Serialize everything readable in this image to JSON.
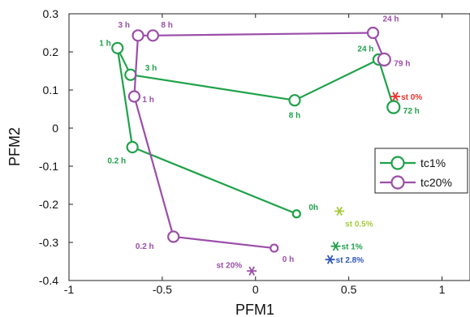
{
  "chart_data": {
    "type": "scatter",
    "xlabel": "PFM1",
    "ylabel": "PFM2",
    "xlim": [
      -1,
      1.15
    ],
    "ylim": [
      -0.4,
      0.3
    ],
    "x_ticks": [
      -1,
      -0.5,
      0,
      0.5,
      1
    ],
    "x_tick_labels": [
      "-1",
      "-0.5",
      "0",
      "0.5",
      "1"
    ],
    "y_ticks": [
      -0.4,
      -0.3,
      -0.2,
      -0.1,
      0,
      0.1,
      0.2,
      0.3
    ],
    "y_tick_labels": [
      "-0.4",
      "-0.3",
      "-0.2",
      "-0.1",
      "0",
      "0.1",
      "0.2",
      "0.3"
    ],
    "grid": false,
    "legend_position": "right",
    "series": [
      {
        "name": "tc1%",
        "color": "#1fa24a",
        "marker": "circle-line",
        "points": [
          {
            "label": "0h",
            "x": 0.22,
            "y": -0.225
          },
          {
            "label": "0.2 h",
            "x": -0.66,
            "y": -0.05
          },
          {
            "label": "1 h",
            "x": -0.74,
            "y": 0.21
          },
          {
            "label": "3 h",
            "x": -0.67,
            "y": 0.14
          },
          {
            "label": "8 h",
            "x": 0.21,
            "y": 0.073
          },
          {
            "label": "24 h",
            "x": 0.66,
            "y": 0.18
          },
          {
            "label": "72 h",
            "x": 0.74,
            "y": 0.055
          }
        ]
      },
      {
        "name": "tc20%",
        "color": "#9b4ea8",
        "marker": "circle-line",
        "points": [
          {
            "label": "0 h",
            "x": 0.1,
            "y": -0.315
          },
          {
            "label": "0.2 h",
            "x": -0.44,
            "y": -0.285
          },
          {
            "label": "1 h",
            "x": -0.65,
            "y": 0.083
          },
          {
            "label": "3 h",
            "x": -0.63,
            "y": 0.243
          },
          {
            "label": "8 h",
            "x": -0.55,
            "y": 0.243
          },
          {
            "label": "24 h",
            "x": 0.63,
            "y": 0.25
          },
          {
            "label": "79 h",
            "x": 0.69,
            "y": 0.18
          }
        ]
      }
    ],
    "standards": [
      {
        "label": "st 0%",
        "x": 0.75,
        "y": 0.083,
        "color": "#e8322c"
      },
      {
        "label": "st 0.5%",
        "x": 0.45,
        "y": -0.218,
        "color": "#a6c93b"
      },
      {
        "label": "st 1%",
        "x": 0.43,
        "y": -0.31,
        "color": "#1fa24a"
      },
      {
        "label": "st 2.8%",
        "x": 0.4,
        "y": -0.345,
        "color": "#2f57b8"
      },
      {
        "label": "st 20%",
        "x": -0.02,
        "y": -0.375,
        "color": "#9b4ea8"
      }
    ]
  }
}
